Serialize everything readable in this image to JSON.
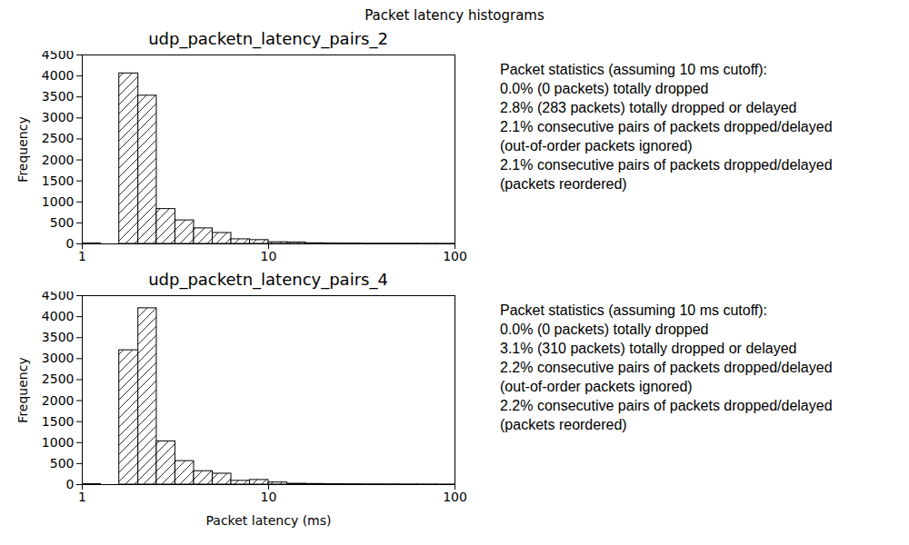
{
  "title": "Packet latency histograms",
  "chart_data": [
    {
      "type": "histogram",
      "title": "udp_packetn_latency_pairs_2",
      "bins": [
        1,
        1.26,
        1.58,
        2,
        2.51,
        3.16,
        3.98,
        5.01,
        6.31,
        7.94,
        10,
        12.6,
        15.8,
        20,
        25.1,
        31.6,
        39.8,
        50.1,
        63.1,
        79.4,
        100
      ],
      "values": [
        10,
        0,
        4060,
        3530,
        830,
        560,
        370,
        260,
        110,
        90,
        40,
        35,
        15,
        10,
        8,
        5,
        5,
        4,
        3,
        2
      ],
      "color": "#ffffff",
      "log": "x",
      "grid": false,
      "ylabel": "Frequency",
      "xlim": [
        1,
        100
      ],
      "xticks": [
        1,
        10,
        100
      ],
      "ylim": [
        0,
        4500
      ],
      "yticks": [
        0,
        500,
        1000,
        1500,
        2000,
        2500,
        3000,
        3500,
        4000,
        4500
      ],
      "annotations": [
        "Packet statistics (assuming 10 ms cutoff):",
        "0.0% (0 packets) totally dropped",
        "2.8% (283 packets) totally dropped or delayed",
        "2.1% consecutive pairs of packets dropped/delayed",
        "(out-of-order packets ignored)",
        "2.1% consecutive pairs of packets dropped/delayed",
        "(packets reordered)"
      ]
    },
    {
      "type": "histogram",
      "title": "udp_packetn_latency_pairs_4",
      "bins": [
        1,
        1.26,
        1.58,
        2,
        2.51,
        3.16,
        3.98,
        5.01,
        6.31,
        7.94,
        10,
        12.6,
        15.8,
        20,
        25.1,
        31.6,
        39.8,
        50.1,
        63.1,
        79.4,
        100
      ],
      "values": [
        10,
        0,
        3200,
        4200,
        1030,
        560,
        320,
        260,
        90,
        110,
        50,
        20,
        15,
        10,
        8,
        6,
        5,
        4,
        3,
        2
      ],
      "color": "#ffffff",
      "log": "x",
      "grid": false,
      "xlabel": "Packet latency (ms)",
      "ylabel": "Frequency",
      "xlim": [
        1,
        100
      ],
      "xticks": [
        1,
        10,
        100
      ],
      "ylim": [
        0,
        4500
      ],
      "yticks": [
        0,
        500,
        1000,
        1500,
        2000,
        2500,
        3000,
        3500,
        4000,
        4500
      ],
      "annotations": [
        "Packet statistics (assuming 10 ms cutoff):",
        "0.0% (0 packets) totally dropped",
        "3.1% (310 packets) totally dropped or delayed",
        "2.2% consecutive pairs of packets dropped/delayed",
        "(out-of-order packets ignored)",
        "2.2% consecutive pairs of packets dropped/delayed",
        "(packets reordered)"
      ]
    }
  ]
}
